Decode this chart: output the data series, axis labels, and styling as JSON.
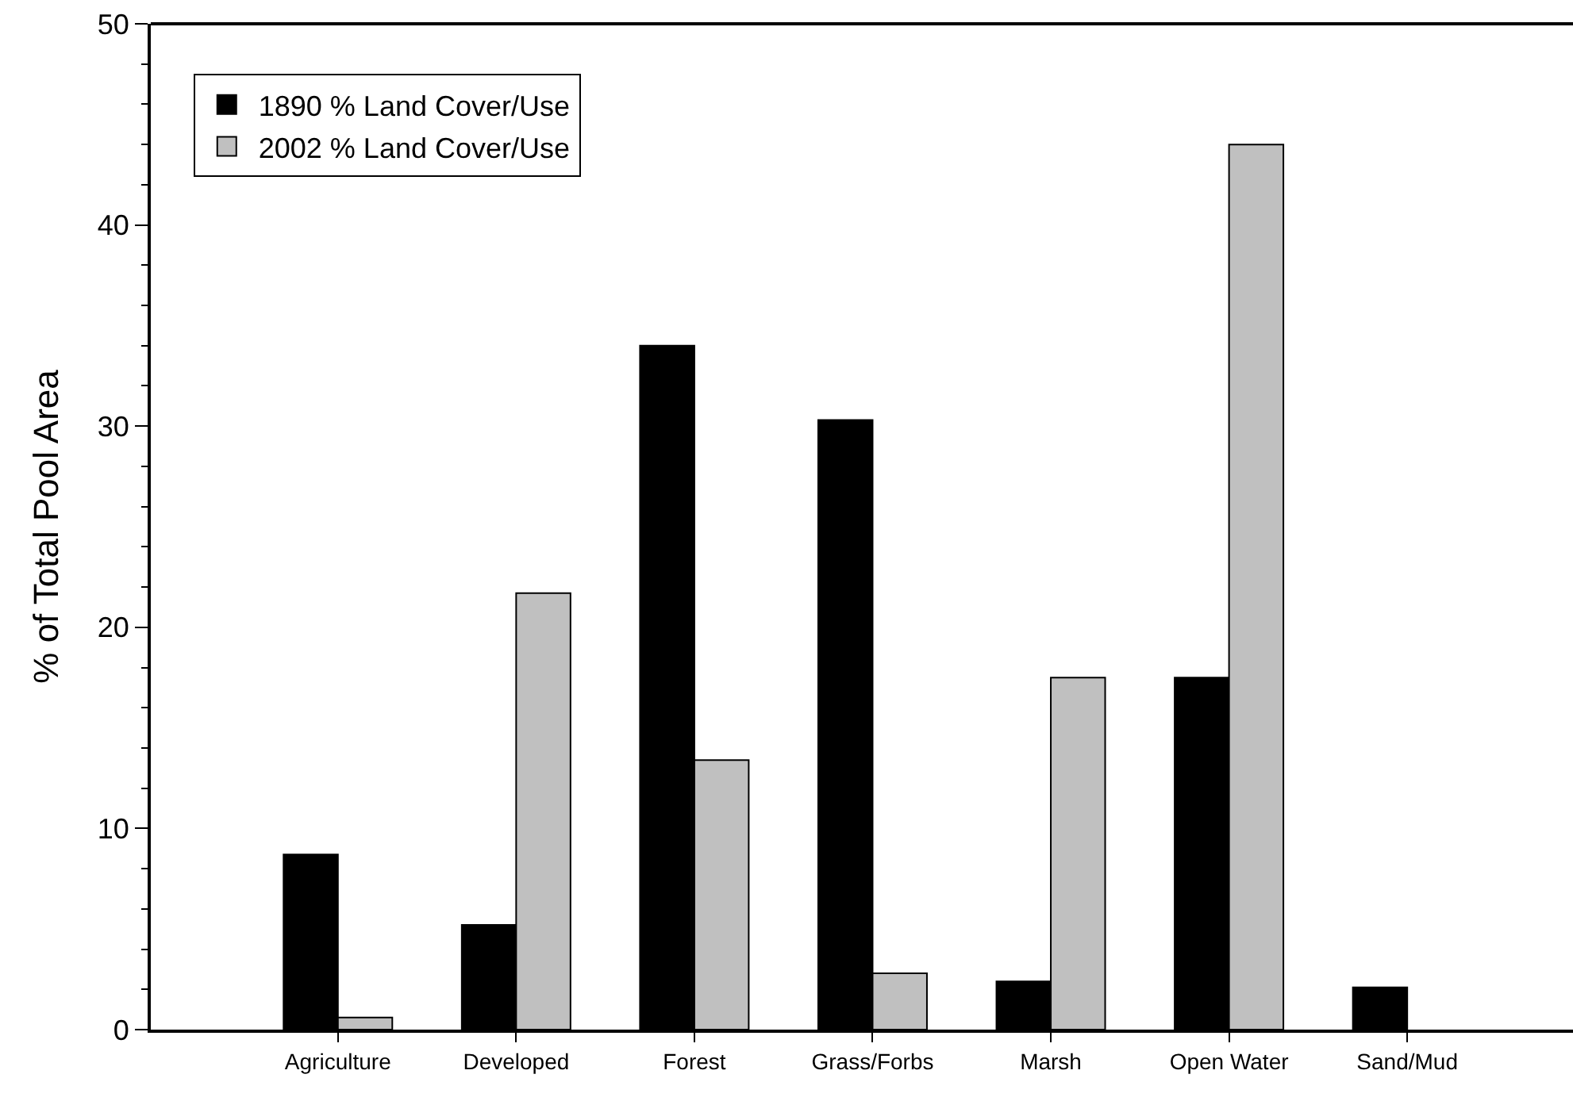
{
  "chart_data": {
    "type": "bar",
    "ylabel": "% of Total Pool Area",
    "categories": [
      "Agriculture",
      "Developed",
      "Forest",
      "Grass/Forbs",
      "Marsh",
      "Open Water",
      "Sand/Mud"
    ],
    "series": [
      {
        "name": "1890 % Land Cover/Use",
        "color": "#000000",
        "values": [
          8.7,
          5.2,
          34.0,
          30.3,
          2.4,
          17.5,
          2.1
        ]
      },
      {
        "name": "2002 % Land Cover/Use",
        "color": "#c0c0c0",
        "values": [
          0.6,
          21.7,
          13.4,
          2.8,
          17.5,
          44.0,
          null
        ]
      }
    ],
    "ylim": [
      0,
      50
    ],
    "yticks": [
      0,
      10,
      20,
      30,
      40,
      50
    ],
    "grid": false,
    "legend": "top left"
  }
}
